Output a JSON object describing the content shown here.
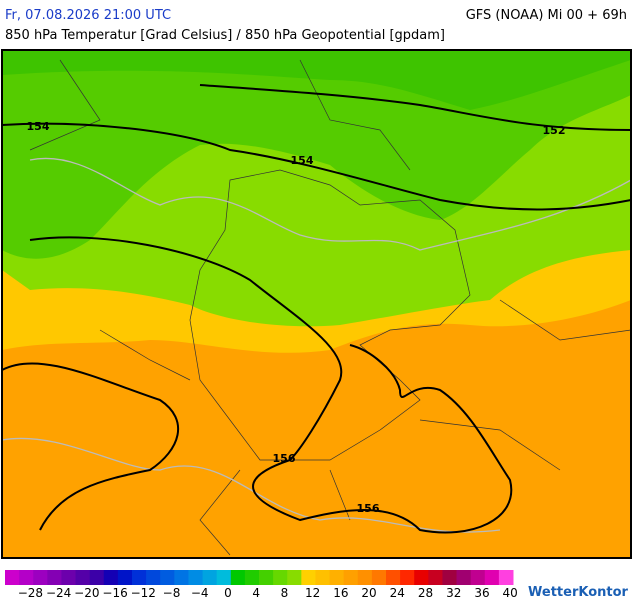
{
  "header": {
    "date": "Fr, 07.08.2026 21:00 UTC",
    "model": "GFS (NOAA) Mi 00 + 69h",
    "subtitle": "850 hPa Temperatur [Grad Celsius] / 850 hPa Geopotential [gpdam]"
  },
  "contour_labels": [
    "154",
    "154",
    "152",
    "156",
    "156"
  ],
  "legend": {
    "colors": [
      "#cc00cc",
      "#b400c8",
      "#9c00c0",
      "#8400b4",
      "#6c00ac",
      "#5400a8",
      "#3c00a8",
      "#1400b4",
      "#0014c8",
      "#0030d8",
      "#0048dc",
      "#005ce0",
      "#0074e4",
      "#008ce4",
      "#00a4e0",
      "#00bcdc",
      "#00c800",
      "#20cc00",
      "#44d000",
      "#66d800",
      "#88dc00",
      "#ffd000",
      "#ffc000",
      "#ffb000",
      "#ffa000",
      "#ff9000",
      "#ff7800",
      "#ff5000",
      "#ff2800",
      "#e80000",
      "#c80020",
      "#a00040",
      "#a00070",
      "#c00090",
      "#e000b0",
      "#ff40e0"
    ],
    "ticks": [
      "−28",
      "−24",
      "−20",
      "−16",
      "−12",
      "−8",
      "−4",
      "0",
      "4",
      "8",
      "12",
      "16",
      "20",
      "24",
      "28",
      "32",
      "36",
      "40"
    ]
  },
  "logo": "WetterKontor"
}
